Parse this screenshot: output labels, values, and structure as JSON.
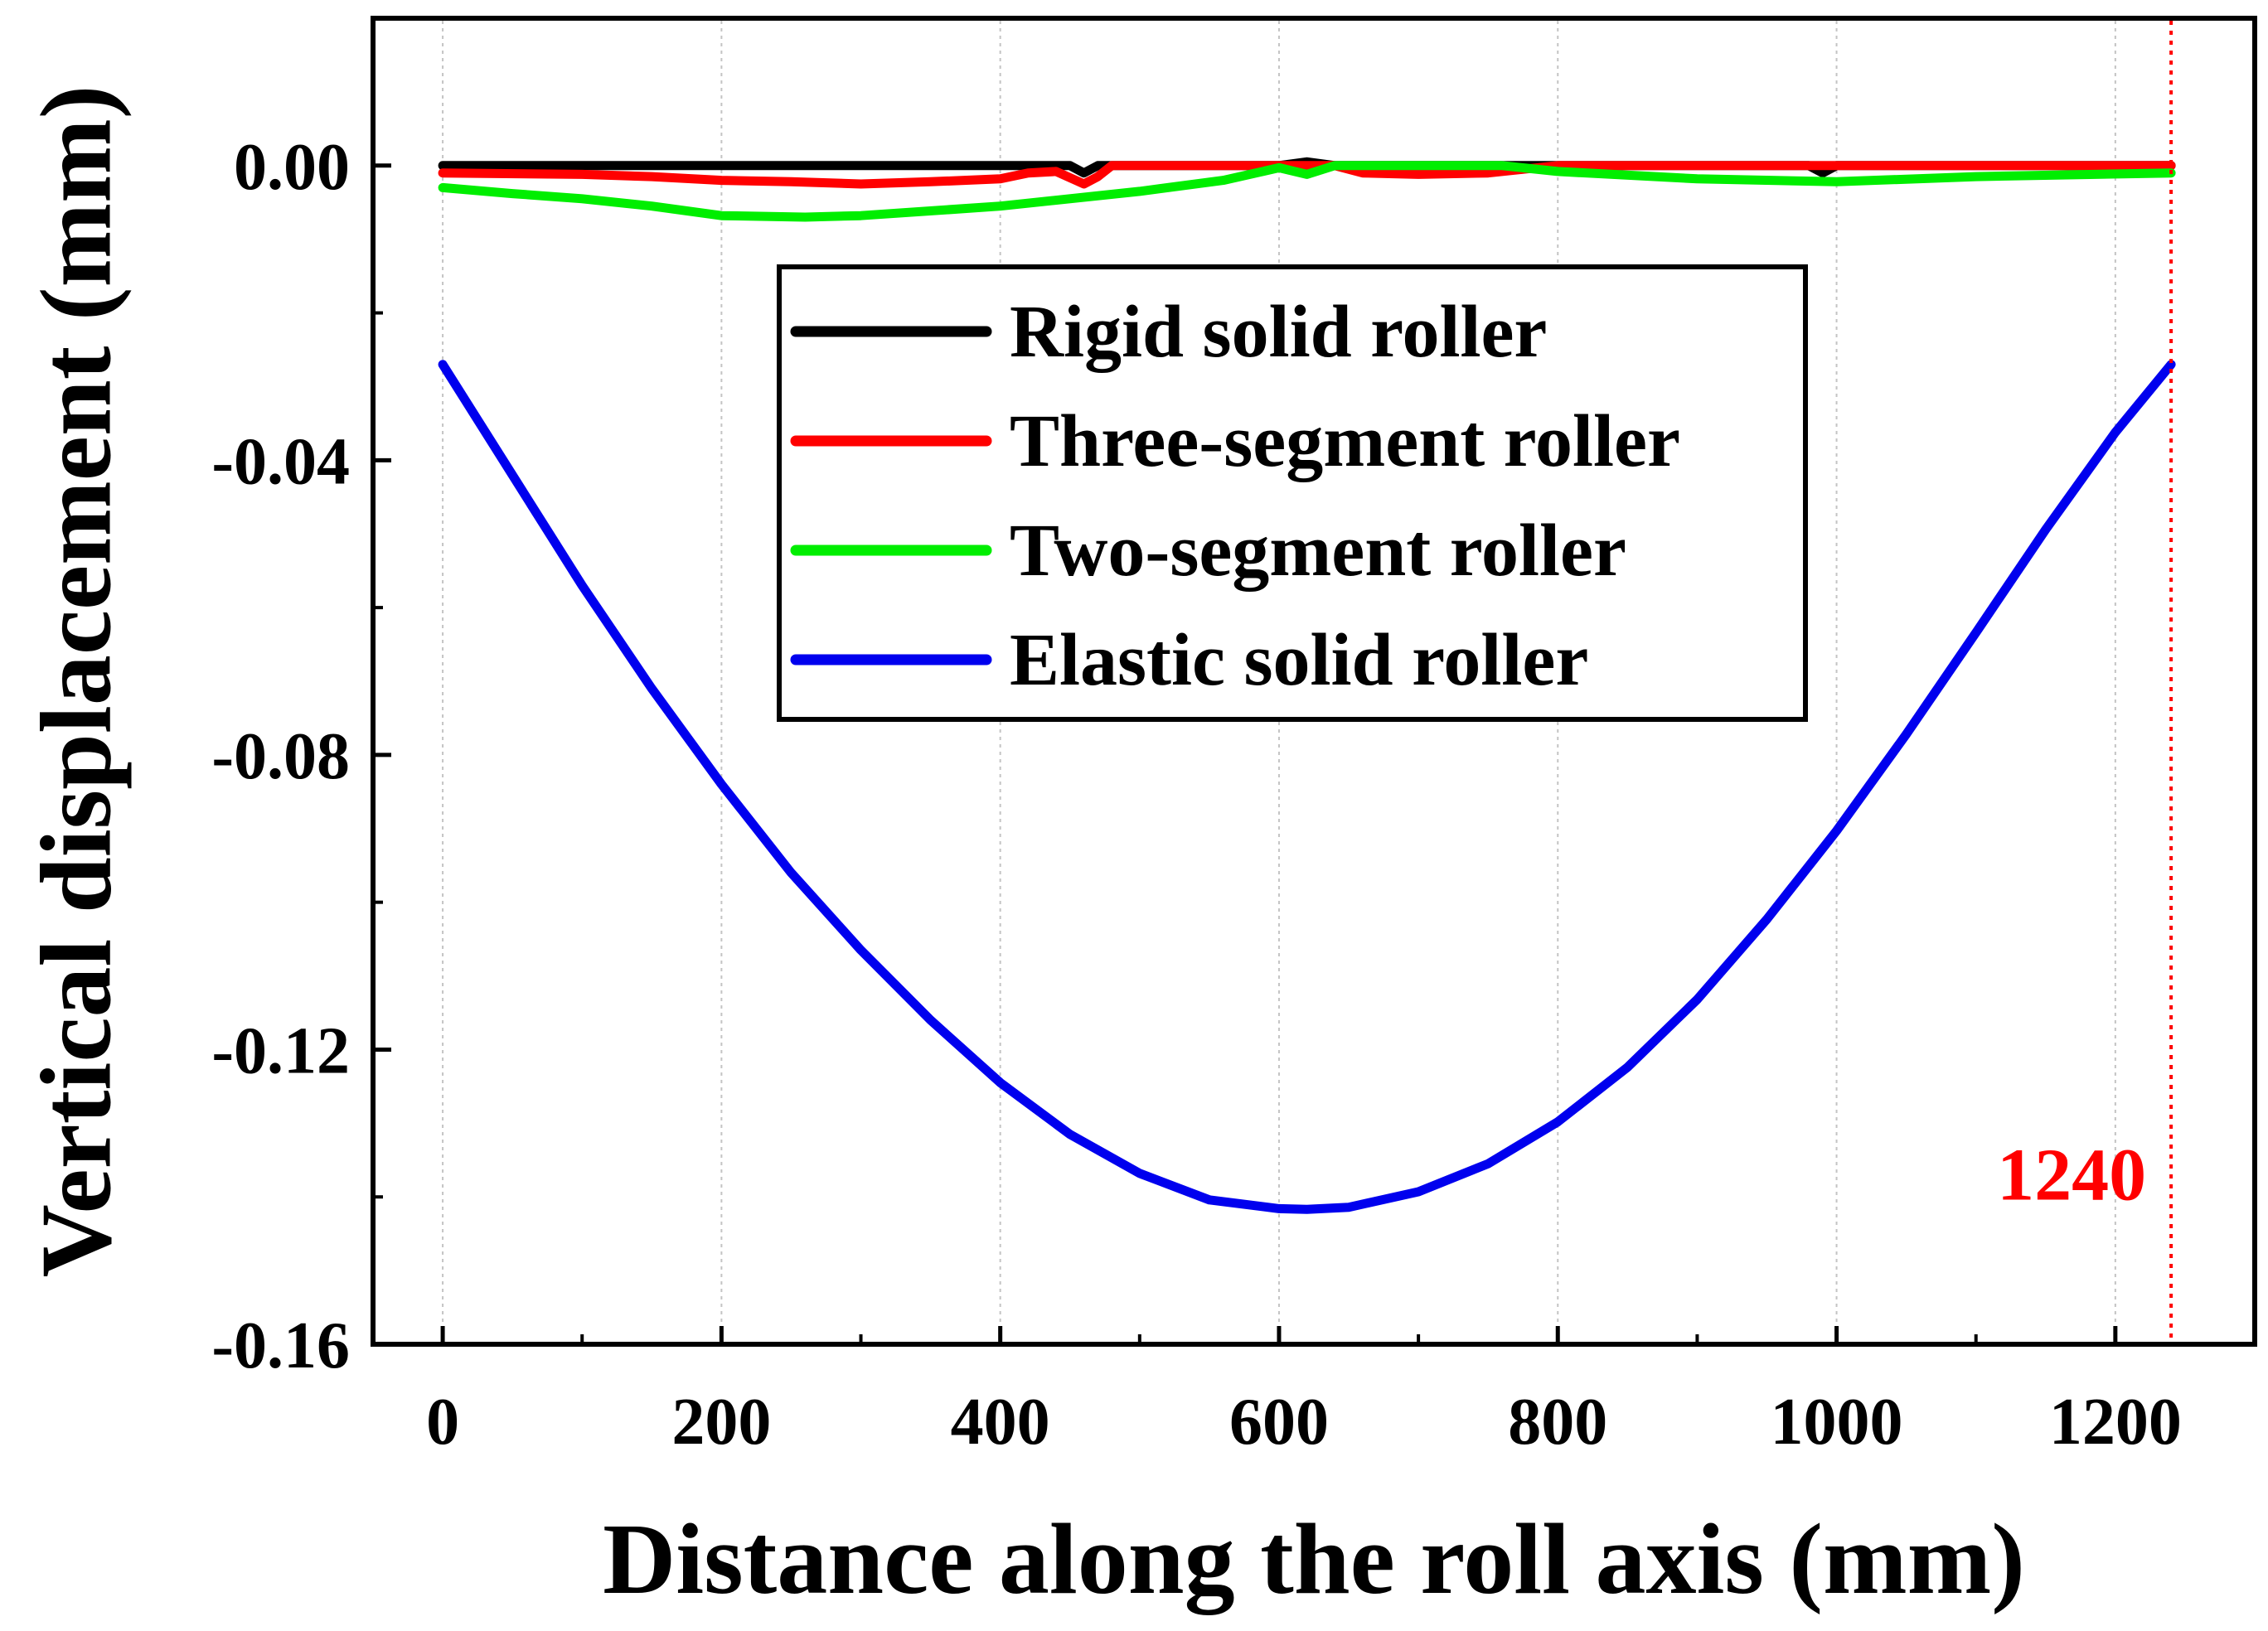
{
  "chart_data": {
    "type": "line",
    "title": "",
    "xlabel": "Distance along the roll axis (mm)",
    "ylabel": "Vertical displacement (mm)",
    "xlim": [
      -50,
      1300
    ],
    "ylim": [
      -0.16,
      0.02
    ],
    "xticks": [
      0,
      200,
      400,
      600,
      800,
      1000,
      1200
    ],
    "xtick_labels": [
      "0",
      "200",
      "400",
      "600",
      "800",
      "1000",
      "1200"
    ],
    "yticks": [
      0.0,
      -0.04,
      -0.08,
      -0.12,
      -0.16
    ],
    "ytick_labels": [
      "0.00",
      "-0.04",
      "-0.08",
      "-0.12",
      "-0.16"
    ],
    "grid": "vertical dotted",
    "legend_position": "upper-center",
    "annotation": {
      "text": "1240",
      "x": 1240,
      "color": "#ff0000",
      "style": "vertical dotted line"
    },
    "series": [
      {
        "name": "Rigid solid roller",
        "color": "#000000",
        "x": [
          0,
          100,
          200,
          300,
          400,
          450,
          460,
          470,
          500,
          600,
          620,
          640,
          700,
          800,
          900,
          980,
          990,
          1000,
          1020,
          1100,
          1240
        ],
        "y": [
          0,
          0,
          0,
          0,
          0,
          0,
          -0.001,
          0,
          0,
          0,
          0.0005,
          0,
          0,
          0,
          0,
          0,
          -0.001,
          0,
          0,
          0,
          0
        ]
      },
      {
        "name": "Three-segment roller",
        "color": "#ff0000",
        "x": [
          0,
          100,
          150,
          200,
          250,
          300,
          350,
          400,
          420,
          440,
          460,
          470,
          480,
          500,
          600,
          640,
          660,
          700,
          750,
          800,
          850,
          900,
          1000,
          1100,
          1240
        ],
        "y": [
          -0.001,
          -0.0012,
          -0.0015,
          -0.002,
          -0.0022,
          -0.0025,
          -0.0022,
          -0.0018,
          -0.001,
          -0.0008,
          -0.0025,
          -0.0015,
          0,
          0,
          0,
          0,
          -0.001,
          -0.0012,
          -0.001,
          0,
          0,
          0,
          0,
          0,
          0
        ]
      },
      {
        "name": "Two-segment roller",
        "color": "#00ee00",
        "x": [
          0,
          50,
          100,
          150,
          200,
          260,
          300,
          400,
          500,
          560,
          600,
          620,
          640,
          700,
          760,
          800,
          900,
          1000,
          1100,
          1240
        ],
        "y": [
          -0.003,
          -0.0038,
          -0.0045,
          -0.0055,
          -0.0068,
          -0.007,
          -0.0068,
          -0.0055,
          -0.0035,
          -0.002,
          -0.0003,
          -0.0012,
          0,
          0,
          0,
          -0.0008,
          -0.0018,
          -0.0022,
          -0.0015,
          -0.001
        ]
      },
      {
        "name": "Elastic solid roller",
        "color": "#0000ee",
        "x": [
          0,
          50,
          100,
          150,
          200,
          250,
          300,
          350,
          400,
          450,
          500,
          550,
          600,
          620,
          650,
          700,
          750,
          800,
          850,
          900,
          950,
          1000,
          1050,
          1100,
          1150,
          1200,
          1240
        ],
        "y": [
          -0.027,
          -0.042,
          -0.057,
          -0.071,
          -0.084,
          -0.096,
          -0.1065,
          -0.116,
          -0.1245,
          -0.1315,
          -0.1368,
          -0.1404,
          -0.1416,
          -0.1417,
          -0.1414,
          -0.1393,
          -0.1355,
          -0.1298,
          -0.1224,
          -0.1132,
          -0.1023,
          -0.0903,
          -0.0772,
          -0.0634,
          -0.0494,
          -0.0362,
          -0.027
        ]
      }
    ]
  }
}
